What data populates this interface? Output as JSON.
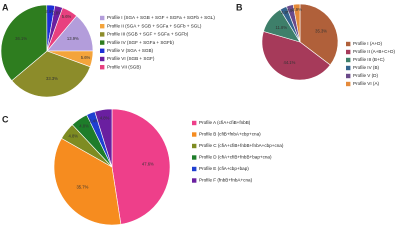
{
  "chart_data": [
    {
      "type": "pie",
      "label": "A",
      "categories": [
        "Profile I (SGA + SGB + SGF + SGFa + SGFb + SGL)",
        "Profile II (SGA + SGB + SGFa + SGFb + SGL)",
        "Profile III (SGB + SGF + SGFa + SGFb)",
        "Profile IV (SGF + SGFa + SGFb)",
        "Profile V (SGA + SGB)",
        "Profile VI (SGB + SGF)",
        "Profile VII (SGB)"
      ],
      "values": [
        13.9,
        5.6,
        33.3,
        36.1,
        2.8,
        2.8,
        5.6
      ],
      "value_labels": [
        "13.9%",
        "5.6%",
        "33.3%",
        "36.1%",
        "2.8%",
        "2.8%",
        "5.6%"
      ],
      "colors": [
        "#b39ddb",
        "#f4a43b",
        "#8c8c2a",
        "#2e7d1f",
        "#1d2fd6",
        "#6a1fa0",
        "#e8407f"
      ]
    },
    {
      "type": "pie",
      "label": "B",
      "categories": [
        "Profile I (A+D)",
        "Profile II (A+B+C+D)",
        "Profile III (B+C)",
        "Profile IV (B)",
        "Profile V (D)",
        "Profile VI (A)"
      ],
      "values": [
        35.3,
        44.1,
        11.8,
        2.9,
        2.9,
        2.9
      ],
      "value_labels": [
        "35.3%",
        "44.1%",
        "11.8%",
        "2.9%",
        "2.9%",
        "2.9%"
      ],
      "colors": [
        "#b0603a",
        "#a63a5a",
        "#3e7f6a",
        "#34648e",
        "#6a4a8a",
        "#e58a3a"
      ]
    },
    {
      "type": "pie",
      "label": "C",
      "categories": [
        "Profile A (cfiA+cfiB+fnbB)",
        "Profile B (cfiB+fnbA+cbp+cna)",
        "Profile C (cfiA+cfiB+fnbB+fnbA+cbp+cna)",
        "Profile D (cfiA+cfiB+fnbB+bap+cna)",
        "Profile E (cfiA+cbp+bap)",
        "Profile F (fnbB+fnbA+cna)"
      ],
      "values": [
        47.6,
        35.7,
        4.8,
        4.8,
        2.4,
        4.8
      ],
      "value_labels": [
        "47.6%",
        "35.7%",
        "4.8%",
        "4.8%",
        "2.4%",
        "4.8%"
      ],
      "colors": [
        "#ee3f8a",
        "#f68c1f",
        "#7e8c22",
        "#1e7d2a",
        "#1f3fd1",
        "#6a1fa0"
      ]
    }
  ]
}
